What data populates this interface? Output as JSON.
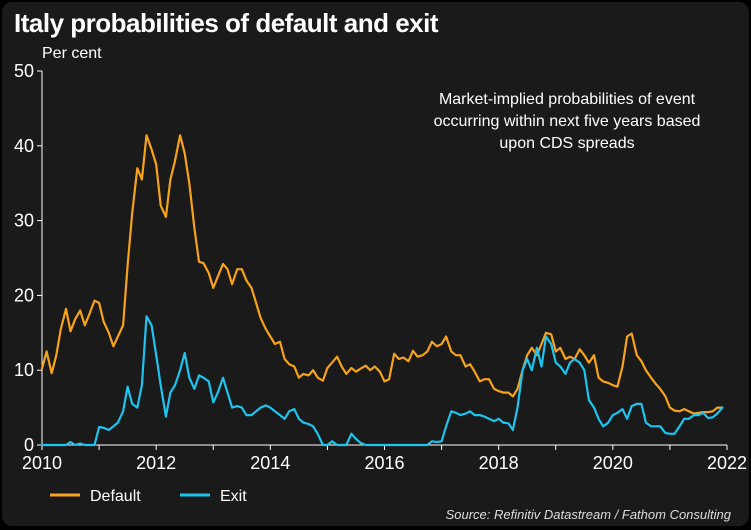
{
  "chart_data": {
    "type": "line",
    "title": "Italy probabilities of default and exit",
    "ylabel": "Per cent",
    "xlim": [
      2010,
      2022
    ],
    "ylim": [
      0,
      50
    ],
    "x_ticks": [
      "2010",
      "2012",
      "2014",
      "2016",
      "2018",
      "2020",
      "2022"
    ],
    "y_ticks": [
      "0",
      "10",
      "20",
      "30",
      "40",
      "50"
    ],
    "annotation": [
      "Market-implied probabilities of event",
      "occurring within next five years based",
      "upon CDS spreads"
    ],
    "source": "Source: Refinitiv Datastream / Fathom Consulting",
    "legend_position": "bottom-left",
    "grid": false,
    "series": [
      {
        "name": "Default",
        "color": "#f7a21b",
        "points": [
          [
            2010.0,
            10.2
          ],
          [
            2010.08,
            12.5
          ],
          [
            2010.17,
            9.6
          ],
          [
            2010.25,
            12.0
          ],
          [
            2010.33,
            15.5
          ],
          [
            2010.42,
            18.2
          ],
          [
            2010.5,
            15.2
          ],
          [
            2010.58,
            16.8
          ],
          [
            2010.67,
            18.0
          ],
          [
            2010.75,
            16.0
          ],
          [
            2010.83,
            17.5
          ],
          [
            2010.92,
            19.3
          ],
          [
            2011.0,
            19.0
          ],
          [
            2011.08,
            16.5
          ],
          [
            2011.17,
            15.0
          ],
          [
            2011.25,
            13.2
          ],
          [
            2011.33,
            14.5
          ],
          [
            2011.42,
            16.0
          ],
          [
            2011.5,
            24.0
          ],
          [
            2011.58,
            31.0
          ],
          [
            2011.67,
            37.0
          ],
          [
            2011.75,
            35.5
          ],
          [
            2011.83,
            41.4
          ],
          [
            2011.92,
            39.5
          ],
          [
            2012.0,
            37.5
          ],
          [
            2012.08,
            32.0
          ],
          [
            2012.17,
            30.5
          ],
          [
            2012.25,
            35.5
          ],
          [
            2012.33,
            38.0
          ],
          [
            2012.42,
            41.4
          ],
          [
            2012.5,
            39.0
          ],
          [
            2012.58,
            35.0
          ],
          [
            2012.67,
            29.0
          ],
          [
            2012.75,
            24.5
          ],
          [
            2012.83,
            24.3
          ],
          [
            2012.92,
            23.0
          ],
          [
            2013.0,
            21.0
          ],
          [
            2013.08,
            22.5
          ],
          [
            2013.17,
            24.2
          ],
          [
            2013.25,
            23.5
          ],
          [
            2013.33,
            21.5
          ],
          [
            2013.42,
            23.5
          ],
          [
            2013.5,
            23.5
          ],
          [
            2013.58,
            22.0
          ],
          [
            2013.67,
            21.0
          ],
          [
            2013.75,
            19.0
          ],
          [
            2013.83,
            17.0
          ],
          [
            2013.92,
            15.5
          ],
          [
            2014.0,
            14.5
          ],
          [
            2014.08,
            13.5
          ],
          [
            2014.17,
            13.8
          ],
          [
            2014.25,
            11.5
          ],
          [
            2014.33,
            10.8
          ],
          [
            2014.42,
            10.5
          ],
          [
            2014.5,
            9.0
          ],
          [
            2014.58,
            9.5
          ],
          [
            2014.67,
            9.3
          ],
          [
            2014.75,
            10.0
          ],
          [
            2014.83,
            9.0
          ],
          [
            2014.92,
            8.6
          ],
          [
            2015.0,
            10.3
          ],
          [
            2015.08,
            11.0
          ],
          [
            2015.17,
            11.8
          ],
          [
            2015.25,
            10.5
          ],
          [
            2015.33,
            9.5
          ],
          [
            2015.42,
            10.3
          ],
          [
            2015.5,
            9.8
          ],
          [
            2015.58,
            10.2
          ],
          [
            2015.67,
            10.6
          ],
          [
            2015.75,
            10.0
          ],
          [
            2015.83,
            10.5
          ],
          [
            2015.92,
            9.8
          ],
          [
            2016.0,
            8.5
          ],
          [
            2016.08,
            8.8
          ],
          [
            2016.17,
            12.2
          ],
          [
            2016.25,
            11.5
          ],
          [
            2016.33,
            11.7
          ],
          [
            2016.42,
            11.2
          ],
          [
            2016.5,
            12.6
          ],
          [
            2016.58,
            11.8
          ],
          [
            2016.67,
            12.0
          ],
          [
            2016.75,
            12.5
          ],
          [
            2016.83,
            13.8
          ],
          [
            2016.92,
            13.2
          ],
          [
            2017.0,
            13.5
          ],
          [
            2017.08,
            14.5
          ],
          [
            2017.17,
            12.5
          ],
          [
            2017.25,
            12.0
          ],
          [
            2017.33,
            12.0
          ],
          [
            2017.42,
            10.5
          ],
          [
            2017.5,
            10.8
          ],
          [
            2017.58,
            9.8
          ],
          [
            2017.67,
            8.5
          ],
          [
            2017.75,
            8.8
          ],
          [
            2017.83,
            8.8
          ],
          [
            2017.92,
            7.5
          ],
          [
            2018.0,
            7.2
          ],
          [
            2018.08,
            7.0
          ],
          [
            2018.17,
            7.0
          ],
          [
            2018.25,
            6.5
          ],
          [
            2018.33,
            7.5
          ],
          [
            2018.42,
            10.0
          ],
          [
            2018.5,
            12.0
          ],
          [
            2018.58,
            13.0
          ],
          [
            2018.67,
            12.0
          ],
          [
            2018.75,
            13.5
          ],
          [
            2018.83,
            15.0
          ],
          [
            2018.92,
            14.8
          ],
          [
            2019.0,
            12.5
          ],
          [
            2019.08,
            13.0
          ],
          [
            2019.17,
            11.5
          ],
          [
            2019.25,
            11.8
          ],
          [
            2019.33,
            11.5
          ],
          [
            2019.42,
            12.8
          ],
          [
            2019.5,
            12.0
          ],
          [
            2019.58,
            11.0
          ],
          [
            2019.67,
            12.0
          ],
          [
            2019.75,
            9.0
          ],
          [
            2019.83,
            8.5
          ],
          [
            2019.92,
            8.3
          ],
          [
            2020.0,
            8.0
          ],
          [
            2020.08,
            7.8
          ],
          [
            2020.17,
            10.5
          ],
          [
            2020.25,
            14.5
          ],
          [
            2020.33,
            14.9
          ],
          [
            2020.42,
            12.0
          ],
          [
            2020.5,
            11.2
          ],
          [
            2020.58,
            10.0
          ],
          [
            2020.67,
            9.0
          ],
          [
            2020.75,
            8.2
          ],
          [
            2020.83,
            7.5
          ],
          [
            2020.92,
            6.5
          ],
          [
            2021.0,
            5.0
          ],
          [
            2021.08,
            4.6
          ],
          [
            2021.17,
            4.5
          ],
          [
            2021.25,
            4.8
          ],
          [
            2021.33,
            4.5
          ],
          [
            2021.42,
            4.2
          ],
          [
            2021.5,
            4.3
          ],
          [
            2021.58,
            4.4
          ],
          [
            2021.67,
            4.4
          ],
          [
            2021.75,
            4.5
          ],
          [
            2021.83,
            5.0
          ],
          [
            2021.92,
            5.0
          ]
        ]
      },
      {
        "name": "Exit",
        "color": "#1ec4ee",
        "points": [
          [
            2010.0,
            0.0
          ],
          [
            2010.08,
            0.0
          ],
          [
            2010.17,
            0.0
          ],
          [
            2010.25,
            0.0
          ],
          [
            2010.33,
            0.0
          ],
          [
            2010.42,
            0.0
          ],
          [
            2010.5,
            0.4
          ],
          [
            2010.58,
            0.0
          ],
          [
            2010.67,
            0.2
          ],
          [
            2010.75,
            0.0
          ],
          [
            2010.83,
            0.0
          ],
          [
            2010.92,
            0.0
          ],
          [
            2011.0,
            2.4
          ],
          [
            2011.08,
            2.3
          ],
          [
            2011.17,
            2.0
          ],
          [
            2011.25,
            2.5
          ],
          [
            2011.33,
            3.0
          ],
          [
            2011.42,
            4.5
          ],
          [
            2011.5,
            7.8
          ],
          [
            2011.58,
            5.5
          ],
          [
            2011.67,
            5.0
          ],
          [
            2011.75,
            8.0
          ],
          [
            2011.83,
            17.2
          ],
          [
            2011.92,
            16.0
          ],
          [
            2012.0,
            12.0
          ],
          [
            2012.08,
            8.0
          ],
          [
            2012.17,
            3.8
          ],
          [
            2012.25,
            7.0
          ],
          [
            2012.33,
            8.0
          ],
          [
            2012.42,
            10.0
          ],
          [
            2012.5,
            12.3
          ],
          [
            2012.58,
            9.0
          ],
          [
            2012.67,
            7.5
          ],
          [
            2012.75,
            9.3
          ],
          [
            2012.83,
            9.0
          ],
          [
            2012.92,
            8.5
          ],
          [
            2013.0,
            5.7
          ],
          [
            2013.08,
            7.0
          ],
          [
            2013.17,
            9.0
          ],
          [
            2013.25,
            7.0
          ],
          [
            2013.33,
            5.0
          ],
          [
            2013.42,
            5.2
          ],
          [
            2013.5,
            5.0
          ],
          [
            2013.58,
            4.0
          ],
          [
            2013.67,
            4.0
          ],
          [
            2013.75,
            4.5
          ],
          [
            2013.83,
            5.0
          ],
          [
            2013.92,
            5.3
          ],
          [
            2014.0,
            5.0
          ],
          [
            2014.08,
            4.5
          ],
          [
            2014.17,
            4.0
          ],
          [
            2014.25,
            3.5
          ],
          [
            2014.33,
            4.5
          ],
          [
            2014.42,
            4.8
          ],
          [
            2014.5,
            3.5
          ],
          [
            2014.58,
            3.0
          ],
          [
            2014.67,
            2.8
          ],
          [
            2014.75,
            2.5
          ],
          [
            2014.83,
            1.5
          ],
          [
            2014.92,
            0.0
          ],
          [
            2015.0,
            0.0
          ],
          [
            2015.08,
            0.5
          ],
          [
            2015.17,
            0.0
          ],
          [
            2015.25,
            0.0
          ],
          [
            2015.33,
            0.0
          ],
          [
            2015.42,
            1.5
          ],
          [
            2015.5,
            0.8
          ],
          [
            2015.58,
            0.3
          ],
          [
            2015.67,
            0.0
          ],
          [
            2015.75,
            0.0
          ],
          [
            2015.83,
            0.0
          ],
          [
            2015.92,
            0.0
          ],
          [
            2016.0,
            0.0
          ],
          [
            2016.08,
            0.0
          ],
          [
            2016.17,
            0.0
          ],
          [
            2016.25,
            0.0
          ],
          [
            2016.33,
            0.0
          ],
          [
            2016.42,
            0.0
          ],
          [
            2016.5,
            0.0
          ],
          [
            2016.58,
            0.0
          ],
          [
            2016.67,
            0.0
          ],
          [
            2016.75,
            0.0
          ],
          [
            2016.83,
            0.5
          ],
          [
            2016.92,
            0.4
          ],
          [
            2017.0,
            0.5
          ],
          [
            2017.08,
            2.5
          ],
          [
            2017.17,
            4.5
          ],
          [
            2017.25,
            4.3
          ],
          [
            2017.33,
            4.0
          ],
          [
            2017.42,
            4.2
          ],
          [
            2017.5,
            4.5
          ],
          [
            2017.58,
            4.0
          ],
          [
            2017.67,
            4.0
          ],
          [
            2017.75,
            3.8
          ],
          [
            2017.83,
            3.5
          ],
          [
            2017.92,
            3.2
          ],
          [
            2018.0,
            3.5
          ],
          [
            2018.08,
            3.0
          ],
          [
            2018.17,
            2.9
          ],
          [
            2018.25,
            2.0
          ],
          [
            2018.33,
            5.0
          ],
          [
            2018.42,
            10.0
          ],
          [
            2018.5,
            11.5
          ],
          [
            2018.58,
            10.0
          ],
          [
            2018.67,
            13.0
          ],
          [
            2018.75,
            10.5
          ],
          [
            2018.83,
            14.5
          ],
          [
            2018.92,
            13.5
          ],
          [
            2019.0,
            11.0
          ],
          [
            2019.08,
            10.5
          ],
          [
            2019.17,
            9.5
          ],
          [
            2019.25,
            11.0
          ],
          [
            2019.33,
            11.5
          ],
          [
            2019.42,
            11.0
          ],
          [
            2019.5,
            10.0
          ],
          [
            2019.58,
            6.0
          ],
          [
            2019.67,
            5.0
          ],
          [
            2019.75,
            3.5
          ],
          [
            2019.83,
            2.5
          ],
          [
            2019.92,
            3.0
          ],
          [
            2020.0,
            4.0
          ],
          [
            2020.08,
            4.3
          ],
          [
            2020.17,
            4.8
          ],
          [
            2020.25,
            3.5
          ],
          [
            2020.33,
            5.2
          ],
          [
            2020.42,
            5.5
          ],
          [
            2020.5,
            5.5
          ],
          [
            2020.58,
            3.0
          ],
          [
            2020.67,
            2.5
          ],
          [
            2020.75,
            2.5
          ],
          [
            2020.83,
            2.5
          ],
          [
            2020.92,
            1.6
          ],
          [
            2021.0,
            1.5
          ],
          [
            2021.08,
            1.5
          ],
          [
            2021.17,
            2.5
          ],
          [
            2021.25,
            3.5
          ],
          [
            2021.33,
            3.5
          ],
          [
            2021.42,
            4.0
          ],
          [
            2021.5,
            4.0
          ],
          [
            2021.58,
            4.3
          ],
          [
            2021.67,
            3.6
          ],
          [
            2021.75,
            3.7
          ],
          [
            2021.83,
            4.2
          ],
          [
            2021.92,
            5.0
          ]
        ]
      }
    ]
  }
}
